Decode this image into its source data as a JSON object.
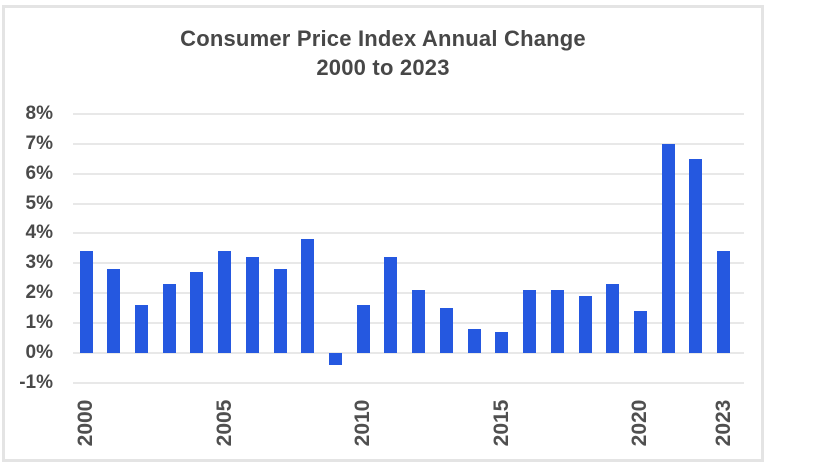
{
  "card": {
    "background": "#ffffff",
    "border_color": "#e4e4e4"
  },
  "chart_data": {
    "type": "bar",
    "title": "Consumer Price Index Annual Change",
    "subtitle": "2000 to 2023",
    "categories": [
      "2000",
      "2001",
      "2002",
      "2003",
      "2004",
      "2005",
      "2006",
      "2007",
      "2008",
      "2009",
      "2010",
      "2011",
      "2012",
      "2013",
      "2014",
      "2015",
      "2016",
      "2017",
      "2018",
      "2019",
      "2020",
      "2021",
      "2022",
      "2023"
    ],
    "values": [
      3.4,
      2.8,
      1.6,
      2.3,
      2.7,
      3.4,
      3.2,
      2.8,
      3.8,
      -0.4,
      1.6,
      3.2,
      2.1,
      1.5,
      0.8,
      0.7,
      2.1,
      2.1,
      1.9,
      2.3,
      1.4,
      7.0,
      6.5,
      3.4
    ],
    "xlabel": "",
    "ylabel": "",
    "ylim": [
      -1,
      8
    ],
    "yticks": [
      8,
      7,
      6,
      5,
      4,
      3,
      2,
      1,
      0,
      -1
    ],
    "ytick_labels": [
      "8%",
      "7%",
      "6%",
      "5%",
      "4%",
      "3%",
      "2%",
      "1%",
      "0%",
      "-1%"
    ],
    "xtick_labels": [
      "2000",
      "2005",
      "2010",
      "2015",
      "2020",
      "2023"
    ],
    "grid": true,
    "legend": "none",
    "bar_color": "#2558e0",
    "gridline_color": "#e8e8e8",
    "title_color": "#474747",
    "tick_label_color": "#4a4a4a"
  }
}
